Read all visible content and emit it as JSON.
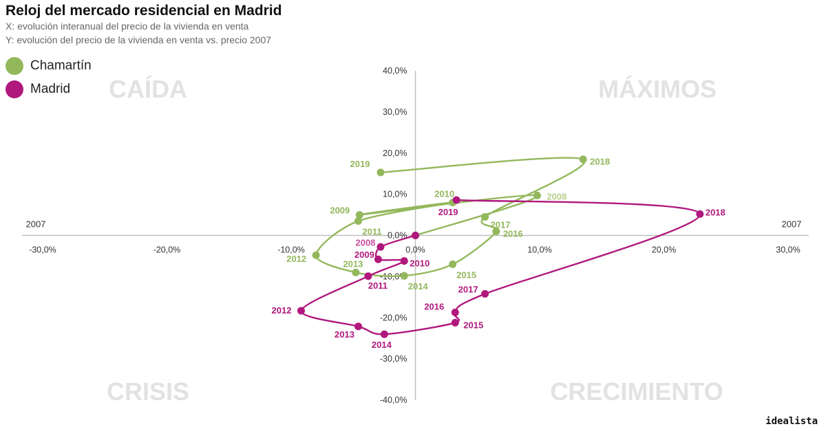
{
  "title": "Reloj del mercado residencial en Madrid",
  "subtitle_x": "X: evolución interanual del precio de la vivienda en venta",
  "subtitle_y": "Y: evolución del precio de la vivienda en venta vs. precio 2007",
  "brand": "idealista",
  "legend": [
    {
      "label": "Chamartín",
      "color": "#93b85c"
    },
    {
      "label": "Madrid",
      "color": "#b0187e"
    }
  ],
  "chart_data": {
    "type": "scatter",
    "connected": "smooth-line",
    "title": "Reloj del mercado residencial en Madrid",
    "xlabel": "evolución interanual del precio de la vivienda en venta",
    "ylabel": "evolución del precio de la vivienda en venta vs. precio 2007",
    "xlim": [
      -30,
      30
    ],
    "ylim": [
      -40,
      40
    ],
    "x_ticks": [
      -30,
      -20,
      -10,
      0,
      10,
      20,
      30
    ],
    "x_tick_labels": [
      "-30,0%",
      "-20,0%",
      "-10,0%",
      "0,0%",
      "10,0%",
      "20,0%",
      "30,0%"
    ],
    "y_ticks": [
      40,
      30,
      20,
      10,
      0,
      -10,
      -20,
      -30,
      -40
    ],
    "y_tick_labels": [
      "40,0%",
      "30,0%",
      "20,0%",
      "10,0%",
      "0,0%",
      "-10,0%",
      "-20,0%",
      "-30,0%",
      "-40,0%"
    ],
    "axis_end_labels": {
      "left": "2007",
      "right": "2007"
    },
    "quadrants": [
      {
        "label": "CAÍDA",
        "position": "top-left"
      },
      {
        "label": "MÁXIMOS",
        "position": "top-right"
      },
      {
        "label": "CRISIS",
        "position": "bottom-left"
      },
      {
        "label": "CRECIMIENTO",
        "position": "bottom-right"
      }
    ],
    "series": [
      {
        "name": "Chamartín",
        "color": "#93b85c",
        "labels": [
          "2007",
          "2008",
          "2009",
          "2010",
          "2011",
          "2012",
          "2013",
          "2014",
          "2015",
          "2016",
          "2017",
          "2018",
          "2019"
        ],
        "x": [
          0.0,
          9.8,
          -4.5,
          3.0,
          -4.6,
          -8.0,
          -4.8,
          -0.9,
          3.0,
          6.5,
          5.6,
          13.5,
          -2.8
        ],
        "y": [
          0.0,
          9.7,
          5.0,
          8.0,
          3.5,
          -4.8,
          -9.0,
          -9.8,
          -7.0,
          1.0,
          4.5,
          18.5,
          15.3
        ]
      },
      {
        "name": "Madrid",
        "color": "#b0187e",
        "labels": [
          "2007",
          "2008",
          "2009",
          "2010",
          "2011",
          "2012",
          "2013",
          "2014",
          "2015",
          "2016",
          "2017",
          "2018",
          "2019"
        ],
        "x": [
          0.0,
          -2.8,
          -3.0,
          -0.9,
          -3.8,
          -9.2,
          -4.6,
          -2.5,
          3.2,
          3.2,
          5.6,
          22.9,
          3.3
        ],
        "y": [
          0.0,
          -2.8,
          -5.8,
          -6.2,
          -9.9,
          -18.3,
          -22.1,
          -24.0,
          -21.2,
          -18.7,
          -14.2,
          5.2,
          8.6
        ]
      }
    ]
  }
}
